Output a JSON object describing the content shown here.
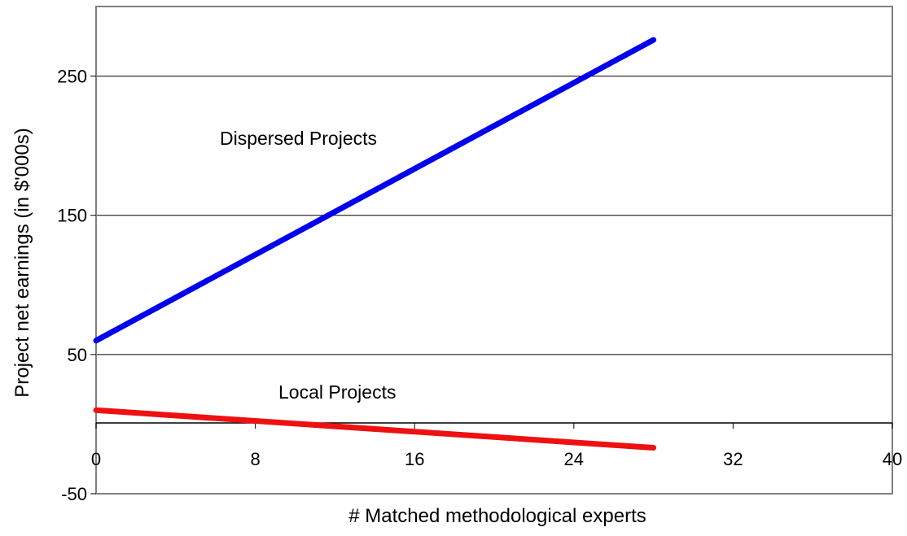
{
  "chart_data": {
    "type": "line",
    "xlabel": "# Matched methodological experts",
    "ylabel": "Project net earnings (in $'000s)",
    "xlim": [
      0,
      40
    ],
    "ylim": [
      -50,
      300
    ],
    "x_ticks": [
      0,
      8,
      16,
      24,
      32,
      40
    ],
    "x_tick_labels": [
      "0",
      "8",
      "16",
      "24",
      "32",
      "40"
    ],
    "y_ticks": [
      -50,
      50,
      150,
      250
    ],
    "y_tick_labels": [
      "-50",
      "50",
      "150",
      "250"
    ],
    "grid": "horizontal",
    "series": [
      {
        "name": "Dispersed Projects",
        "color": "#0000ee",
        "x": [
          0,
          28
        ],
        "y": [
          60,
          276
        ]
      },
      {
        "name": "Local Projects",
        "color": "#ee1111",
        "x": [
          0,
          28
        ],
        "y": [
          10,
          -17
        ]
      }
    ]
  }
}
